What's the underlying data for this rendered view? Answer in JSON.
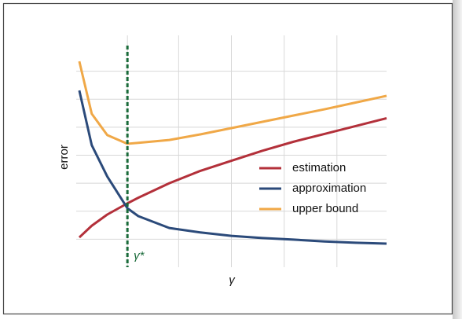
{
  "chart_data": {
    "type": "line",
    "x_label": "γ",
    "y_label": "error",
    "x": [
      0.1,
      0.5,
      1,
      1.65,
      2,
      3,
      4,
      5,
      6,
      7,
      8,
      9,
      10
    ],
    "series": [
      {
        "name": "estimation",
        "color": "#b3303a",
        "values": [
          0.98,
          1.5,
          2.0,
          2.5,
          2.75,
          3.4,
          3.95,
          4.4,
          4.85,
          5.25,
          5.6,
          5.95,
          6.3
        ]
      },
      {
        "name": "approximation",
        "color": "#2b4a7a",
        "values": [
          7.54,
          5.1,
          3.7,
          2.28,
          1.93,
          1.4,
          1.2,
          1.05,
          0.95,
          0.88,
          0.8,
          0.74,
          0.7
        ]
      },
      {
        "name": "upper bound",
        "color": "#f0a847",
        "values": [
          8.84,
          6.5,
          5.55,
          5.16,
          5.2,
          5.33,
          5.58,
          5.86,
          6.14,
          6.42,
          6.7,
          7.0,
          7.3
        ]
      }
    ],
    "vline": {
      "x": 1.65,
      "label": "γ*",
      "color": "#1a6b3a"
    },
    "xlim": [
      0,
      10
    ],
    "ylim": [
      0,
      10
    ],
    "xticks": [
      1.65,
      3.3,
      5,
      6.7,
      8.4
    ],
    "yticks": [
      0.9,
      2.15,
      3.4,
      4.65,
      5.9,
      7.15,
      8.4
    ],
    "grid": true,
    "legend": "right"
  }
}
